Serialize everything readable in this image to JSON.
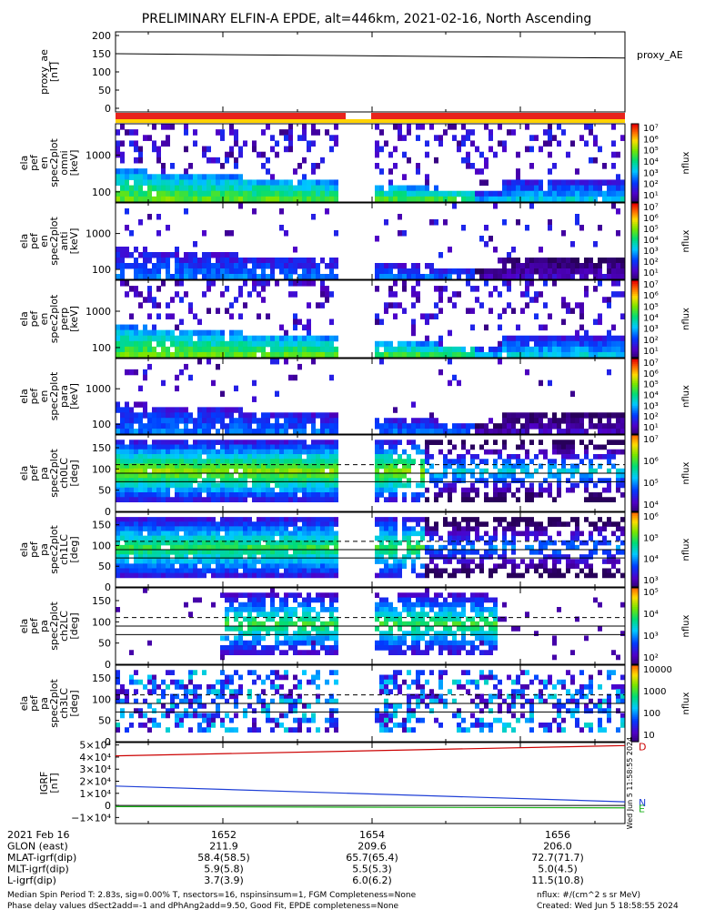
{
  "title": "PRELIMINARY ELFIN-A EPDE, alt=446km, 2021-02-16, North Ascending",
  "colors": {
    "orbit_bar": "#e8231c",
    "orbit_gap": "#ffd200",
    "igrf_D": "#cc0000",
    "igrf_N": "#1f3fd6",
    "igrf_E": "#18b018"
  },
  "chart_data": [
    {
      "type": "line",
      "panel": "proxy_ae",
      "ylabel_lines": [
        "proxy_ae",
        "[nT]"
      ],
      "yticks": [
        "200",
        "150",
        "100",
        "50",
        "0"
      ],
      "ylim": [
        -10,
        210
      ],
      "legend": "proxy_AE",
      "series": [
        {
          "name": "proxy_AE",
          "x": [
            0,
            1
          ],
          "y": [
            150,
            138
          ]
        }
      ]
    },
    {
      "type": "heatmap",
      "panel": "en_omni",
      "ylabel_lines": [
        "ela",
        "pef",
        "en",
        "spec2plot",
        "omni",
        "[keV]"
      ],
      "yticks": [
        "1000",
        "100"
      ],
      "yscale": "log",
      "colorbar": {
        "label": "nflux",
        "ticks": [
          "10⁷",
          "10⁶",
          "10⁵",
          "10⁴",
          "10³",
          "10²",
          "10¹"
        ]
      }
    },
    {
      "type": "heatmap",
      "panel": "en_anti",
      "ylabel_lines": [
        "ela",
        "pef",
        "en",
        "spec2plot",
        "anti",
        "[keV]"
      ],
      "yticks": [
        "1000",
        "100"
      ],
      "yscale": "log",
      "colorbar": {
        "label": "nflux",
        "ticks": [
          "10⁷",
          "10⁶",
          "10⁵",
          "10⁴",
          "10³",
          "10²",
          "10¹"
        ]
      }
    },
    {
      "type": "heatmap",
      "panel": "en_perp",
      "ylabel_lines": [
        "ela",
        "pef",
        "en",
        "spec2plot",
        "perp",
        "[keV]"
      ],
      "yticks": [
        "1000",
        "100"
      ],
      "yscale": "log",
      "colorbar": {
        "label": "nflux",
        "ticks": [
          "10⁷",
          "10⁶",
          "10⁵",
          "10⁴",
          "10³",
          "10²",
          "10¹"
        ]
      }
    },
    {
      "type": "heatmap",
      "panel": "en_para",
      "ylabel_lines": [
        "ela",
        "pef",
        "en",
        "spec2plot",
        "para",
        "[keV]"
      ],
      "yticks": [
        "1000",
        "100"
      ],
      "yscale": "log",
      "colorbar": {
        "label": "nflux",
        "ticks": [
          "10⁷",
          "10⁶",
          "10⁵",
          "10⁴",
          "10³",
          "10²",
          "10¹"
        ]
      }
    },
    {
      "type": "heatmap",
      "panel": "pa_ch0",
      "ylabel_lines": [
        "ela",
        "pef",
        "pa",
        "spec2plot",
        "ch0LC",
        "[deg]"
      ],
      "yticks": [
        "150",
        "100",
        "50",
        "0"
      ],
      "ylim": [
        0,
        180
      ],
      "colorbar": {
        "label": "nflux",
        "ticks": [
          "10⁷",
          "10⁶",
          "10⁵",
          "10⁴"
        ]
      }
    },
    {
      "type": "heatmap",
      "panel": "pa_ch1",
      "ylabel_lines": [
        "ela",
        "pef",
        "pa",
        "spec2plot",
        "ch1LC",
        "[deg]"
      ],
      "yticks": [
        "150",
        "100",
        "50",
        "0"
      ],
      "ylim": [
        0,
        180
      ],
      "colorbar": {
        "label": "nflux",
        "ticks": [
          "10⁶",
          "10⁵",
          "10⁴",
          "10³"
        ]
      }
    },
    {
      "type": "heatmap",
      "panel": "pa_ch2",
      "ylabel_lines": [
        "ela",
        "pef",
        "pa",
        "spec2plot",
        "ch2LC",
        "[deg]"
      ],
      "yticks": [
        "150",
        "100",
        "50",
        "0"
      ],
      "ylim": [
        0,
        180
      ],
      "colorbar": {
        "label": "nflux",
        "ticks": [
          "10⁵",
          "10⁴",
          "10³",
          "10²"
        ]
      }
    },
    {
      "type": "heatmap",
      "panel": "pa_ch3",
      "ylabel_lines": [
        "ela",
        "pef",
        "pa",
        "spec2plot",
        "ch3LC",
        "[deg]"
      ],
      "yticks": [
        "150",
        "100",
        "50",
        "0"
      ],
      "ylim": [
        0,
        180
      ],
      "colorbar": {
        "label": "nflux",
        "ticks": [
          "10000",
          "1000",
          "100",
          "10"
        ]
      }
    },
    {
      "type": "line",
      "panel": "igrf",
      "ylabel_lines": [
        "IGRF",
        "[nT]"
      ],
      "yticks": [
        "5×10⁴",
        "4×10⁴",
        "3×10⁴",
        "2×10⁴",
        "1×10⁴",
        "0",
        "−1×10⁴"
      ],
      "ylim": [
        -15000,
        52000
      ],
      "side_label": "Wed Jun  5 11:58:55 2024",
      "series": [
        {
          "name": "D",
          "x": [
            0,
            1
          ],
          "y": [
            41000,
            49500
          ]
        },
        {
          "name": "N",
          "x": [
            0,
            1
          ],
          "y": [
            16000,
            3000
          ]
        },
        {
          "name": "E",
          "x": [
            0,
            1
          ],
          "y": [
            -1000,
            -2000
          ]
        }
      ]
    }
  ],
  "orbit_table": {
    "rows": [
      [
        "2021 Feb 16",
        "1652",
        "1654",
        "1656"
      ],
      [
        "GLON (east)",
        "211.9",
        "209.6",
        "206.0"
      ],
      [
        "MLAT-igrf(dip)",
        "58.4(58.5)",
        "65.7(65.4)",
        "72.7(71.7)"
      ],
      [
        "MLT-igrf(dip)",
        "5.9(5.8)",
        "5.5(5.3)",
        "5.0(4.5)"
      ],
      [
        "L-igrf(dip)",
        "3.7(3.9)",
        "6.0(6.2)",
        "11.5(10.8)"
      ]
    ]
  },
  "footer": {
    "left1": "Median Spin Period T: 2.83s, sig=0.00% T, nsectors=16, nspinsinsum=1, FGM Completeness=None",
    "left2": "Phase delay values dSect2add=-1 and dPhAng2add=9.50, Good Fit, EPDE completeness=None",
    "right1": "nflux: #/(cm^2 s sr MeV)",
    "right2": "Created: Wed Jun  5 18:58:55 2024"
  }
}
